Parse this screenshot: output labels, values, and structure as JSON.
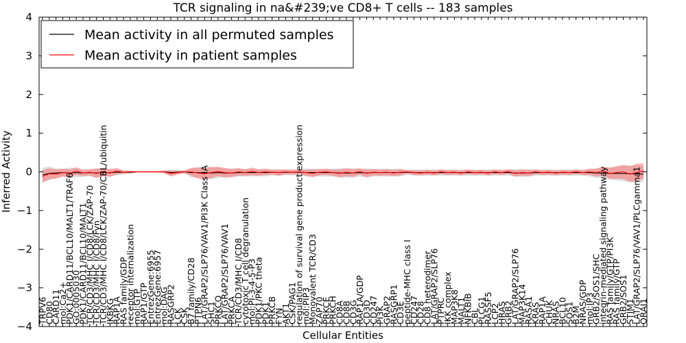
{
  "chart_data": {
    "type": "line",
    "title": "TCR signaling in na&#239;ve CD8+ T cells -- 183 samples",
    "xlabel": "Cellular Entities",
    "ylabel": "Inferred Activity",
    "ylim": [
      -4,
      4
    ],
    "yticks": [
      -4,
      -3,
      -2,
      -1,
      0,
      1,
      2,
      3,
      4
    ],
    "ytick_labels": [
      "−4",
      "−3",
      "−2",
      "−1",
      "0",
      "1",
      "2",
      "3",
      "4"
    ],
    "legend_position": "top-left",
    "categories": [
      "TRPV6",
      "CD80",
      "CARD11",
      "mol:Ca2+",
      "PDK1/CARD11/BCL10/MALT1/TRAF6",
      "GO:0005030",
      "PDK1/CARD11/BCL10/MALT1",
      "TCR/CD3/MHC I/CD8/LCK/ZAP-70",
      "TCR/CD3/MHC I/CD8/Fyn",
      "TCR/CD3/MHC I/CD8/LCK/ZAP-70/CBL/ubiquitin",
      "IKBKG",
      "RAP1A",
      "RAS family/GDP",
      "receptor internalization",
      "mol:GTP",
      "RAP1/GTP",
      "EntrezGene:6955",
      "EntrezGene:6957",
      "mol:DAG",
      "RASGRP2",
      "LCK",
      "CSK",
      "B7 family/CD28",
      "PTPN6",
      "LAT/GRAP2/SLP76/VAV1/PI3K Class IA",
      "SHC1",
      "PRKCQ",
      "LAT/GRAP2/SLP76/VAV1",
      "PRKCA",
      "TCR/CD3/MHC I/CD8",
      "cytotoxic T cell degranulation",
      "mol:PI-3-4-5-P3",
      "PDK1/PKC theta",
      "PDK1",
      "PRKCB",
      "FYN",
      "AKT1",
      "CSK/PAG1",
      "regulation of survival gene product expression",
      "mol:PIP3",
      "Monovalent TCR/CD3",
      "ZAP70",
      "PRKCE",
      "PRKCH",
      "CD8A",
      "CD8B",
      "CD3G",
      "RAP1A/GDP",
      "CD3D",
      "CD247",
      "PI3K",
      "GRAP2",
      "RASGRP1",
      "CD3E",
      "peptide-MHC class I",
      "CD247",
      "CD28",
      "CD8 heterodimer",
      "LAT/GRAP2/SLP76",
      "PTPRC",
      "IKK complex",
      "MAP3K8",
      "MALT1",
      "NFKBIB",
      "CBL",
      "PLCG1",
      "RASSF5",
      "LCP2",
      "HRAS",
      "GRB2",
      "LAT/GRAP2/SLP76",
      "MAP3K14",
      "RASA1",
      "KRAS",
      "RAP1A",
      "CHUK",
      "NRAS",
      "BCL10",
      "SOS1",
      "B2M",
      "NRAS/GDP",
      "mol:IP3",
      "GRB2/SOS1/SHC",
      "integrin-mediated signaling pathway",
      "RAS family/GTP/PI3K",
      "RAS family/GTP",
      "GRB2/SOS1",
      "STIM1",
      "LAT/GRAP2/SLP76/VAV1/PLCgamma1",
      "ORAI1"
    ],
    "series": [
      {
        "name": "Mean activity in all permuted samples",
        "color": "#000000",
        "values": [
          -0.08,
          -0.04,
          -0.03,
          -0.02,
          -0.03,
          -0.02,
          -0.03,
          -0.02,
          -0.03,
          -0.02,
          -0.02,
          -0.01,
          -0.01,
          -0.01,
          0,
          0,
          0,
          0,
          0,
          -0.02,
          -0.01,
          0,
          -0.02,
          -0.02,
          -0.03,
          -0.03,
          -0.02,
          -0.03,
          -0.03,
          -0.02,
          -0.02,
          -0.02,
          -0.02,
          -0.02,
          -0.01,
          -0.02,
          -0.01,
          -0.01,
          -0.01,
          -0.02,
          -0.02,
          -0.02,
          -0.02,
          -0.02,
          -0.03,
          -0.03,
          -0.03,
          -0.02,
          -0.03,
          -0.02,
          -0.02,
          -0.02,
          -0.02,
          -0.02,
          -0.01,
          -0.02,
          -0.02,
          -0.02,
          -0.02,
          -0.02,
          -0.02,
          -0.02,
          -0.02,
          -0.02,
          -0.02,
          -0.02,
          -0.02,
          -0.02,
          -0.02,
          -0.02,
          -0.03,
          -0.03,
          -0.03,
          -0.02,
          -0.02,
          -0.02,
          -0.02,
          -0.02,
          -0.02,
          -0.02,
          -0.02,
          -0.02,
          -0.03,
          -0.03,
          -0.04,
          -0.04,
          -0.04,
          -0.05,
          -0.05,
          -0.06
        ],
        "spread": [
          0.18,
          0.18,
          0.12,
          0.1,
          0.14,
          0.12,
          0.1,
          0.09,
          0.12,
          0.1,
          0.1,
          0.08,
          0.05,
          0.04,
          0.02,
          0.02,
          0.02,
          0.02,
          0.04,
          0.08,
          0.06,
          0.04,
          0.12,
          0.14,
          0.16,
          0.16,
          0.14,
          0.12,
          0.12,
          0.1,
          0.1,
          0.1,
          0.1,
          0.1,
          0.08,
          0.08,
          0.08,
          0.08,
          0.08,
          0.1,
          0.1,
          0.1,
          0.1,
          0.1,
          0.12,
          0.12,
          0.12,
          0.1,
          0.12,
          0.1,
          0.1,
          0.1,
          0.1,
          0.1,
          0.06,
          0.08,
          0.08,
          0.08,
          0.08,
          0.08,
          0.08,
          0.08,
          0.08,
          0.08,
          0.08,
          0.08,
          0.08,
          0.08,
          0.08,
          0.08,
          0.1,
          0.1,
          0.1,
          0.08,
          0.08,
          0.08,
          0.08,
          0.08,
          0.08,
          0.08,
          0.08,
          0.1,
          0.12,
          0.14,
          0.16,
          0.18,
          0.2,
          0.22,
          0.22,
          0.2
        ]
      },
      {
        "name": "Mean activity in patient samples",
        "color": "#ff0000",
        "values": [
          -0.12,
          -0.05,
          -0.06,
          -0.02,
          -0.04,
          0.02,
          -0.03,
          -0.01,
          -0.04,
          0,
          -0.03,
          0.02,
          -0.01,
          0,
          0,
          0,
          0,
          0,
          0,
          -0.04,
          -0.02,
          0,
          0,
          -0.03,
          -0.05,
          -0.02,
          0.01,
          -0.02,
          -0.03,
          0,
          -0.02,
          0.01,
          -0.02,
          0,
          -0.01,
          -0.02,
          0,
          -0.01,
          0,
          -0.02,
          -0.04,
          -0.01,
          0,
          -0.02,
          -0.04,
          -0.01,
          -0.03,
          0.01,
          -0.04,
          -0.01,
          -0.02,
          -0.01,
          -0.03,
          -0.01,
          0,
          -0.02,
          -0.03,
          -0.01,
          -0.03,
          0,
          -0.02,
          -0.01,
          -0.03,
          0,
          -0.02,
          -0.01,
          -0.03,
          0,
          -0.02,
          0.01,
          -0.04,
          -0.02,
          -0.03,
          0,
          -0.02,
          -0.01,
          -0.03,
          -0.01,
          -0.02,
          0,
          -0.02,
          0,
          -0.02,
          0.02,
          -0.04,
          -0.02,
          0,
          -0.06,
          -0.01,
          0.02
        ],
        "spread": [
          0.16,
          0.14,
          0.12,
          0.1,
          0.1,
          0.1,
          0.08,
          0.08,
          0.12,
          0.1,
          0.1,
          0.08,
          0.04,
          0.03,
          0.02,
          0.02,
          0.02,
          0.02,
          0.03,
          0.08,
          0.05,
          0.03,
          0.1,
          0.14,
          0.15,
          0.14,
          0.12,
          0.12,
          0.1,
          0.1,
          0.08,
          0.1,
          0.08,
          0.08,
          0.06,
          0.08,
          0.06,
          0.06,
          0.06,
          0.08,
          0.1,
          0.08,
          0.08,
          0.08,
          0.1,
          0.1,
          0.1,
          0.08,
          0.1,
          0.08,
          0.08,
          0.08,
          0.08,
          0.08,
          0.05,
          0.06,
          0.06,
          0.06,
          0.06,
          0.06,
          0.06,
          0.06,
          0.06,
          0.06,
          0.06,
          0.06,
          0.06,
          0.06,
          0.06,
          0.06,
          0.08,
          0.08,
          0.08,
          0.06,
          0.06,
          0.06,
          0.06,
          0.06,
          0.06,
          0.06,
          0.06,
          0.08,
          0.1,
          0.12,
          0.14,
          0.16,
          0.18,
          0.2,
          0.22,
          0.2
        ]
      }
    ]
  }
}
